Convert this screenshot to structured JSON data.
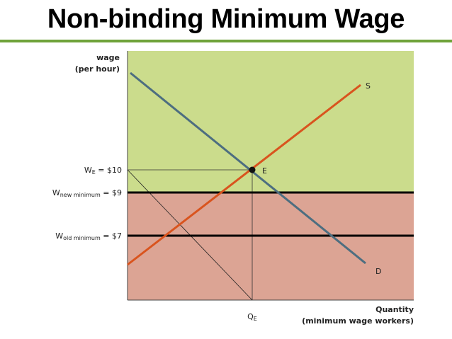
{
  "title": "Non-binding Minimum Wage",
  "colors": {
    "green_region": "#cbdc8c",
    "red_region": "#dca494",
    "supply_line": "#d9541e",
    "demand_line": "#4d6e80",
    "title_rule": "#6fa33a"
  },
  "axes": {
    "y_label_line1": "wage",
    "y_label_line2": "(per hour)",
    "x_label_line1": "Quantity",
    "x_label_line2": "(minimum wage workers)"
  },
  "curves": {
    "supply_label": "S",
    "demand_label": "D"
  },
  "equilibrium": {
    "point_label": "E",
    "wage_prefix": "W",
    "wage_subscript": "E",
    "wage_value": " = $10",
    "qty_prefix": "Q",
    "qty_subscript": "E"
  },
  "wage_levels": {
    "new_prefix": "W",
    "new_subscript": "new minimum",
    "new_value": " = $9",
    "old_prefix": "W",
    "old_subscript": "old minimum",
    "old_value": " = $7"
  }
}
